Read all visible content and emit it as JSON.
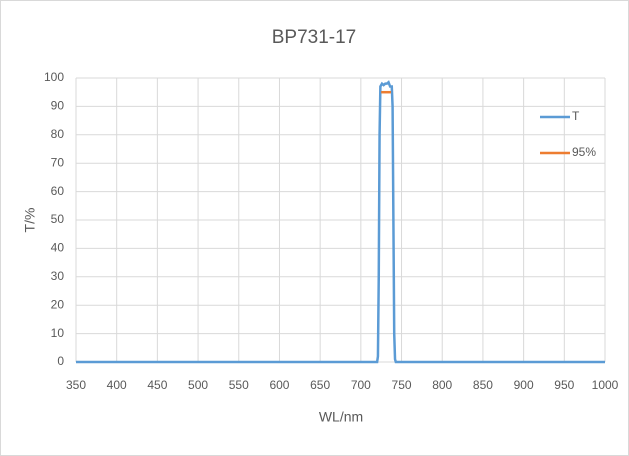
{
  "chart_data": {
    "type": "line",
    "title": "BP731-17",
    "x_label": "WL/nm",
    "y_label": "T/%",
    "series": [
      {
        "name": "T",
        "color": "#5b9bd5",
        "x": [
          350,
          720,
          721,
          722,
          723,
          724,
          726,
          728,
          730,
          732,
          734,
          736,
          738,
          739,
          740,
          741,
          742,
          743,
          1000
        ],
        "values": [
          0,
          0,
          2,
          30,
          80,
          97,
          98,
          97.5,
          98,
          98,
          98.5,
          97,
          97,
          90,
          50,
          10,
          1,
          0,
          0
        ]
      },
      {
        "name": "95%",
        "color": "#ed7d31",
        "x": [
          725,
          737
        ],
        "values": [
          95,
          95
        ]
      }
    ],
    "xlim": [
      350,
      1000
    ],
    "xticks": [
      350,
      400,
      450,
      500,
      550,
      600,
      650,
      700,
      750,
      800,
      850,
      900,
      950,
      1000
    ],
    "ylim": [
      0,
      100
    ],
    "yticks": [
      0,
      10,
      20,
      30,
      40,
      50,
      60,
      70,
      80,
      90,
      100
    ],
    "grid": true,
    "legend": "right"
  }
}
